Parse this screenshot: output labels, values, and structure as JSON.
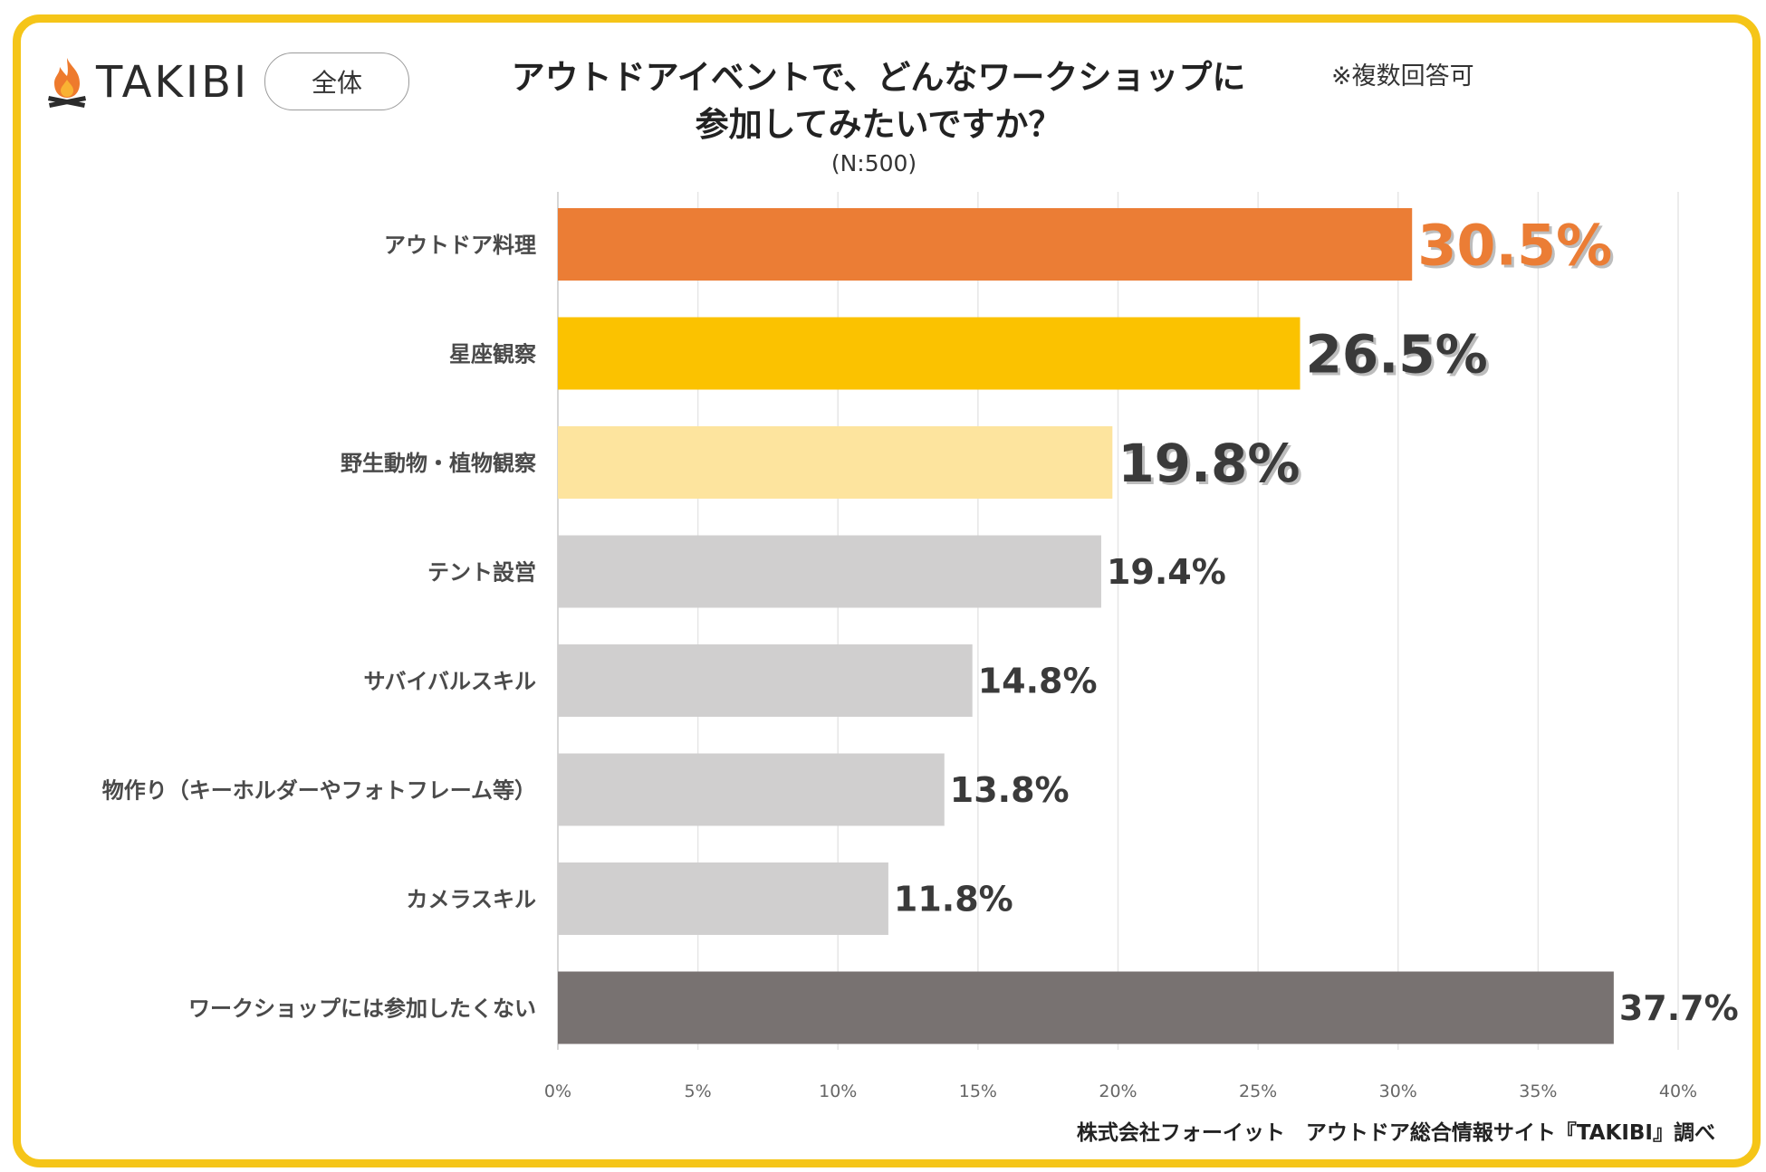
{
  "header": {
    "logo_text": "TAKIBI",
    "segment_label": "全体",
    "title_line1": "アウトドアイベントで、どんなワークショップに",
    "title_line2": "参加してみたいですか？",
    "note": "※複数回答可",
    "sample_size": "(N:500)"
  },
  "footer": {
    "source": "株式会社フォーイット　アウトドア総合情報サイト『TAKIBI』調べ"
  },
  "colors": {
    "frame": "#F5C518",
    "top1": "#EB7D35",
    "top2": "#FBC200",
    "top3": "#FDE49E",
    "rest": "#D0CFCF",
    "none": "#787271",
    "label_top1": "#EB7D35",
    "label_default": "#3a3a3a"
  },
  "chart_data": {
    "type": "bar",
    "orientation": "horizontal",
    "title": "アウトドアイベントで、どんなワークショップに参加してみたいですか？",
    "categories": [
      "アウトドア料理",
      "星座観察",
      "野生動物・植物観察",
      "テント設営",
      "サバイバルスキル",
      "物作り（キーホルダーやフォトフレーム等）",
      "カメラスキル",
      "ワークショップには参加したくない"
    ],
    "values": [
      30.5,
      26.5,
      19.8,
      19.4,
      14.8,
      13.8,
      11.8,
      37.7
    ],
    "value_labels": [
      "30.5%",
      "26.5%",
      "19.8%",
      "19.4%",
      "14.8%",
      "13.8%",
      "11.8%",
      "37.7%"
    ],
    "bar_color_keys": [
      "top1",
      "top2",
      "top3",
      "rest",
      "rest",
      "rest",
      "rest",
      "none"
    ],
    "xlim": [
      0,
      40
    ],
    "xticks": [
      0,
      5,
      10,
      15,
      20,
      25,
      30,
      35,
      40
    ],
    "xtick_labels": [
      "0%",
      "5%",
      "10%",
      "15%",
      "20%",
      "25%",
      "30%",
      "35%",
      "40%"
    ],
    "grid": true,
    "xlabel": "",
    "ylabel": ""
  }
}
